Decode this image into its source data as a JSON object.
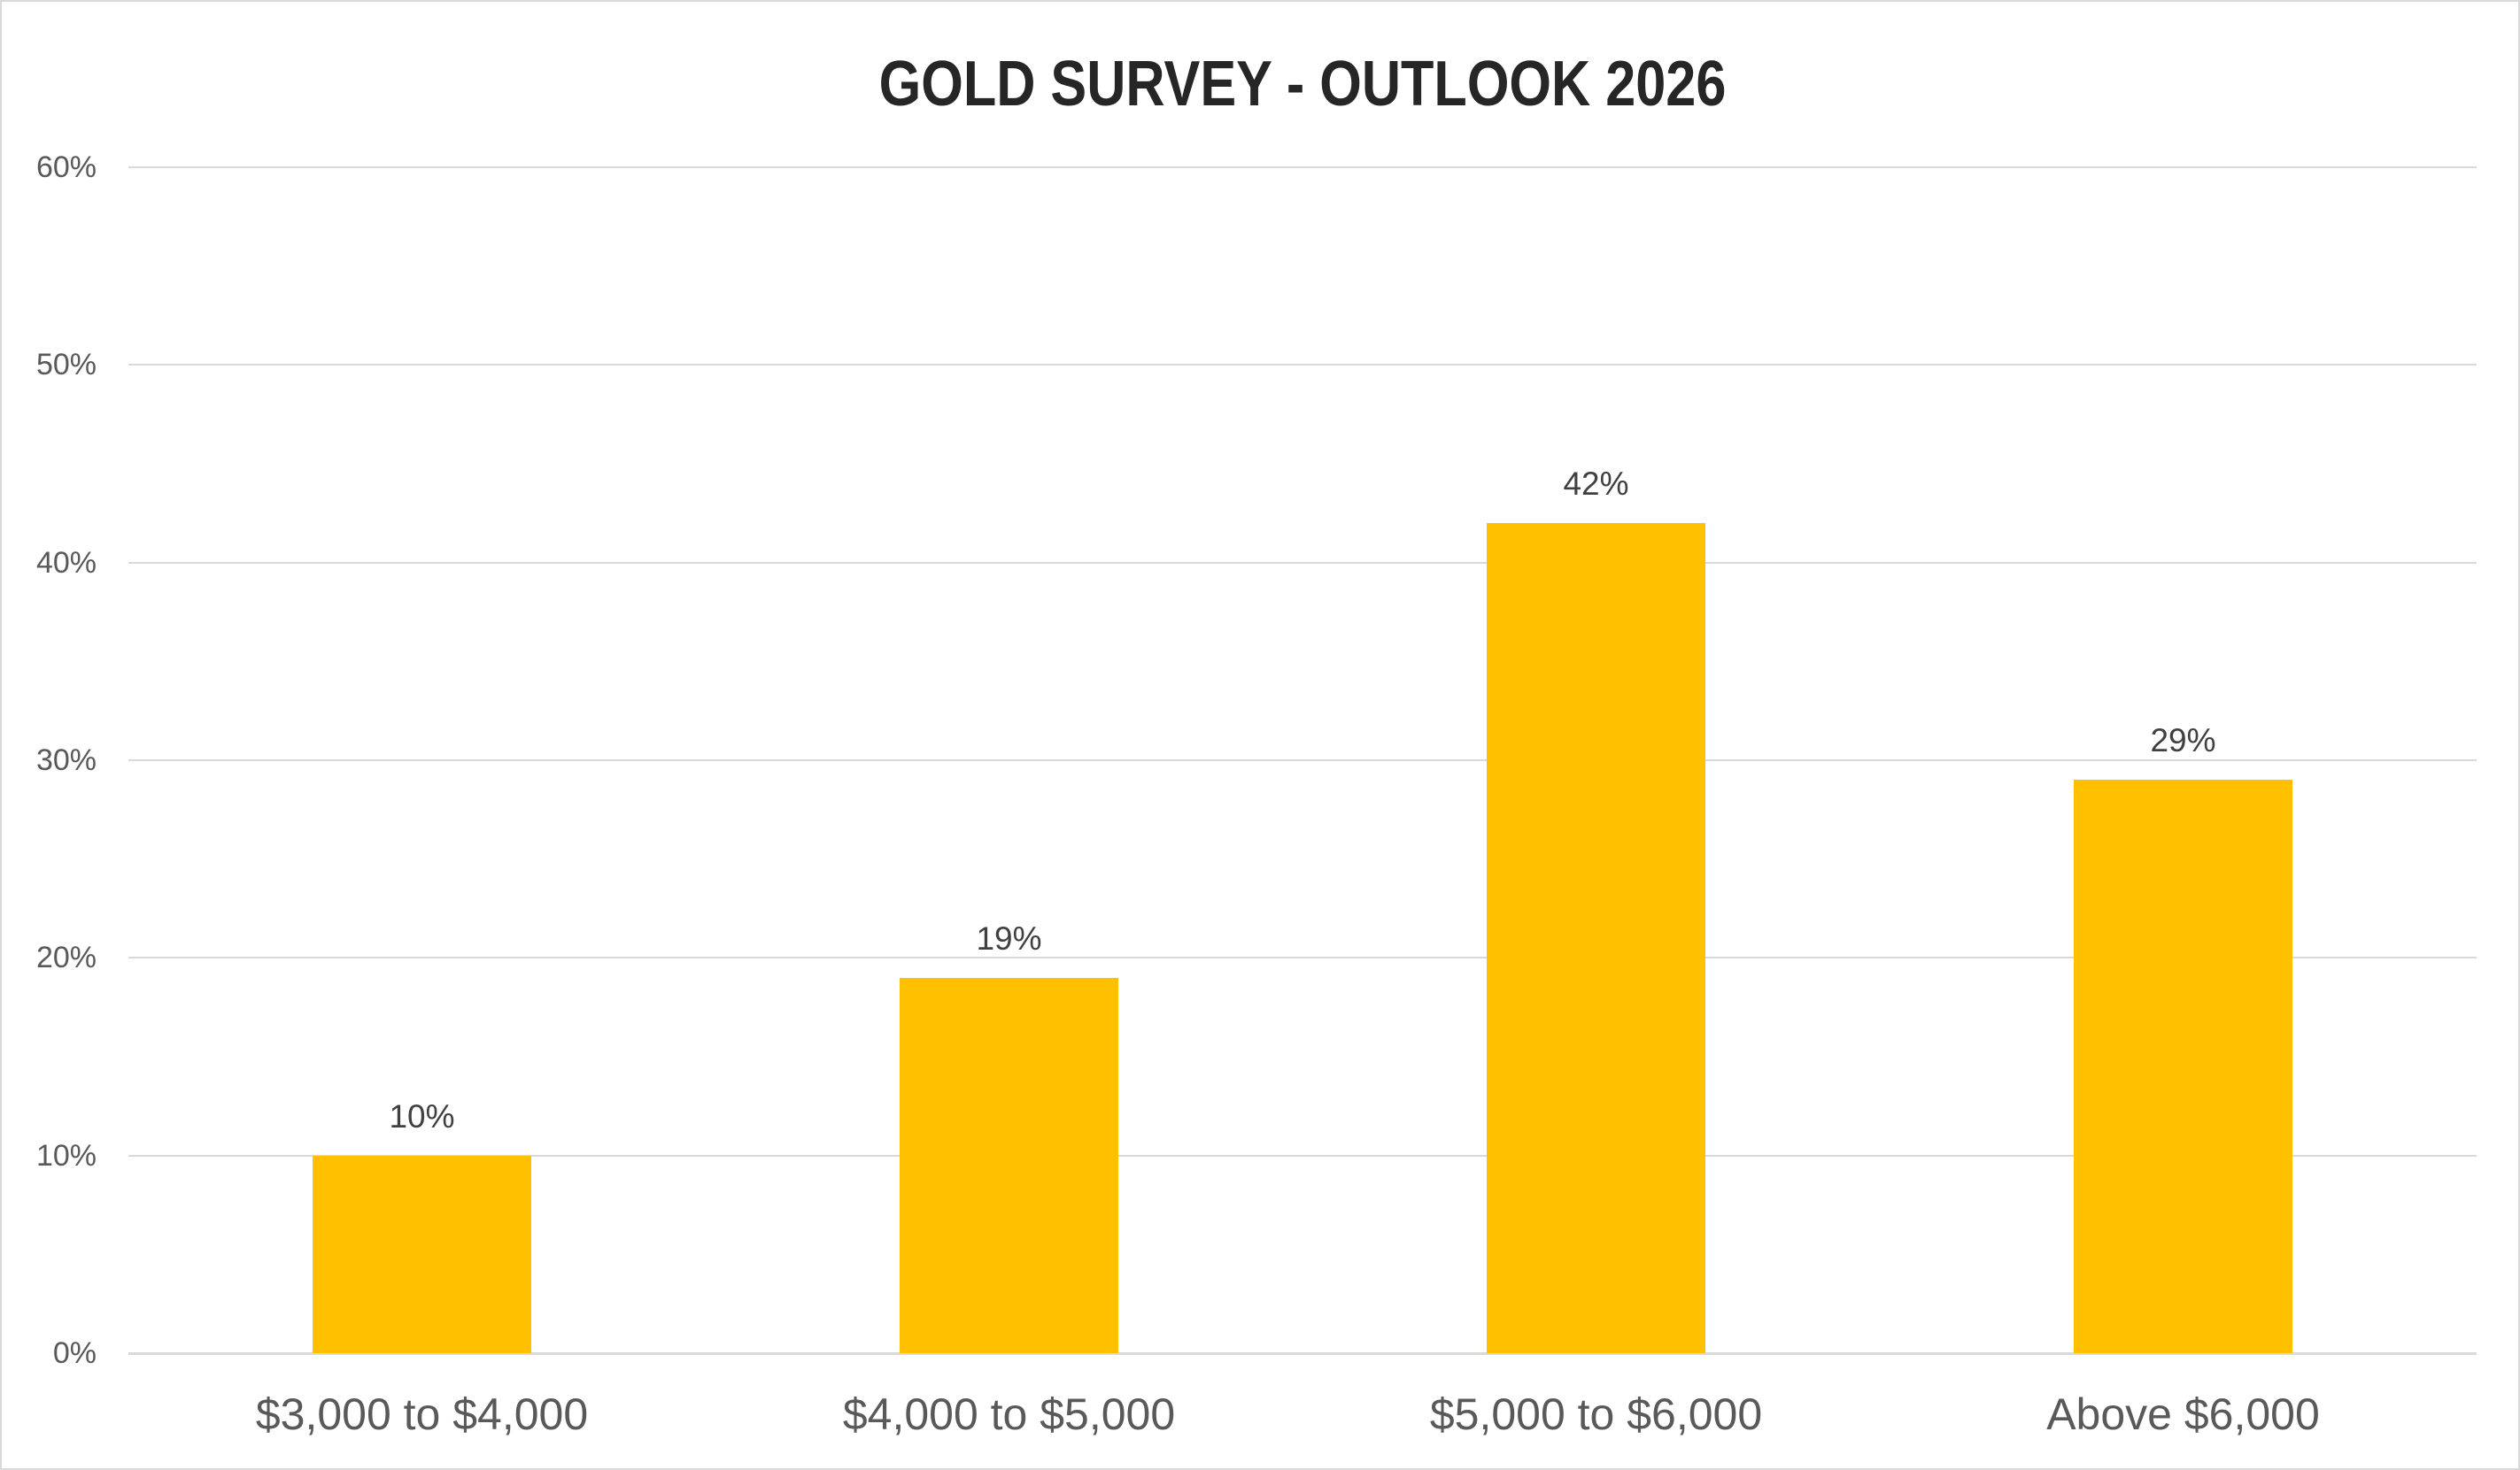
{
  "chart_data": {
    "type": "bar",
    "title": "GOLD SURVEY - OUTLOOK 2026",
    "categories": [
      "$3,000 to $4,000",
      "$4,000 to $5,000",
      "$5,000 to $6,000",
      "Above $6,000"
    ],
    "values": [
      10,
      19,
      42,
      29
    ],
    "data_labels": [
      "10%",
      "19%",
      "42%",
      "29%"
    ],
    "series_name": "",
    "xlabel": "",
    "ylabel": "",
    "ylim": [
      0,
      60
    ],
    "ytick_step": 10,
    "yticks": [
      {
        "value": 0,
        "label": "0%"
      },
      {
        "value": 10,
        "label": "10%"
      },
      {
        "value": 20,
        "label": "20%"
      },
      {
        "value": 30,
        "label": "30%"
      },
      {
        "value": 40,
        "label": "40%"
      },
      {
        "value": 50,
        "label": "50%"
      },
      {
        "value": 60,
        "label": "60%"
      }
    ],
    "grid": true,
    "legend": false,
    "colors": {
      "bar": "#FFC000",
      "gridline": "#D9D9D9",
      "axis_line": "#D9D9D9",
      "tick_label": "#595959",
      "category_label": "#595959",
      "data_label": "#404040",
      "title": "#262626",
      "background": "#FFFFFF",
      "frame_border": "#D9D9D9"
    }
  }
}
